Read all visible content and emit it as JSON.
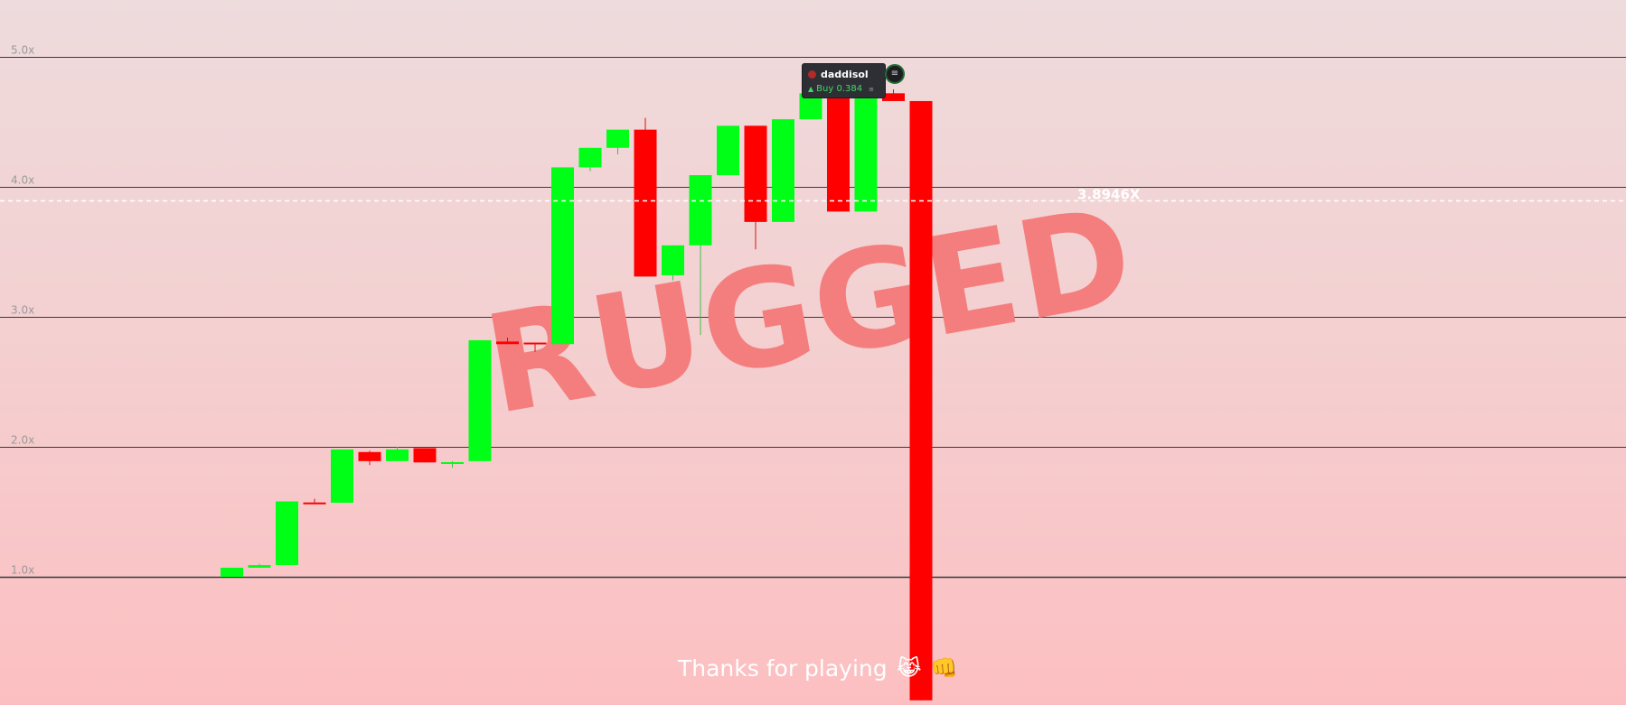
{
  "chart_data": {
    "type": "candlestick",
    "y_scale_label_suffix": "x",
    "ylim": [
      0.05,
      5.43
    ],
    "y_ticks": [
      "1.0x",
      "2.0x",
      "3.0x",
      "4.0x",
      "5.0x"
    ],
    "current_price": 3.8946,
    "current_price_label": "3.8946X",
    "watermark": "RUGGED",
    "colors": {
      "up": "#00ff16",
      "down": "#ff0000",
      "grid": "#3a3a3a",
      "current_line": "#ffffff"
    },
    "candles": [
      {
        "open": 1.0,
        "high": 1.07,
        "low": 1.0,
        "close": 1.07
      },
      {
        "open": 1.07,
        "high": 1.1,
        "low": 1.07,
        "close": 1.09
      },
      {
        "open": 1.09,
        "high": 1.58,
        "low": 1.09,
        "close": 1.58
      },
      {
        "open": 1.57,
        "high": 1.6,
        "low": 1.56,
        "close": 1.56
      },
      {
        "open": 1.57,
        "high": 1.98,
        "low": 1.57,
        "close": 1.98
      },
      {
        "open": 1.96,
        "high": 1.97,
        "low": 1.86,
        "close": 1.89
      },
      {
        "open": 1.89,
        "high": 2.0,
        "low": 1.89,
        "close": 1.98
      },
      {
        "open": 1.99,
        "high": 1.99,
        "low": 1.88,
        "close": 1.88
      },
      {
        "open": 1.87,
        "high": 1.89,
        "low": 1.84,
        "close": 1.88
      },
      {
        "open": 1.89,
        "high": 2.82,
        "low": 1.89,
        "close": 2.82
      },
      {
        "open": 2.81,
        "high": 2.84,
        "low": 2.79,
        "close": 2.79
      },
      {
        "open": 2.8,
        "high": 2.8,
        "low": 2.73,
        "close": 2.79
      },
      {
        "open": 2.79,
        "high": 4.15,
        "low": 2.79,
        "close": 4.15
      },
      {
        "open": 4.15,
        "high": 4.3,
        "low": 4.12,
        "close": 4.3
      },
      {
        "open": 4.3,
        "high": 4.44,
        "low": 4.25,
        "close": 4.44
      },
      {
        "open": 4.44,
        "high": 4.53,
        "low": 3.31,
        "close": 3.31
      },
      {
        "open": 3.32,
        "high": 3.55,
        "low": 3.28,
        "close": 3.55
      },
      {
        "open": 3.55,
        "high": 4.09,
        "low": 2.86,
        "close": 4.09
      },
      {
        "open": 4.09,
        "high": 4.47,
        "low": 4.09,
        "close": 4.47
      },
      {
        "open": 4.47,
        "high": 4.47,
        "low": 3.52,
        "close": 3.73
      },
      {
        "open": 3.73,
        "high": 4.52,
        "low": 3.73,
        "close": 4.52
      },
      {
        "open": 4.52,
        "high": 4.72,
        "low": 4.52,
        "close": 4.72
      },
      {
        "open": 4.72,
        "high": 4.72,
        "low": 3.81,
        "close": 3.81
      },
      {
        "open": 3.81,
        "high": 4.72,
        "low": 3.81,
        "close": 4.72
      },
      {
        "open": 4.72,
        "high": 4.75,
        "low": 4.66,
        "close": 4.66
      },
      {
        "open": 4.66,
        "high": 4.66,
        "low": 0.05,
        "close": 0.05
      }
    ]
  },
  "trade_tag": {
    "user": "daddisol",
    "action": "Buy 0.384",
    "arrow": "▲",
    "mini_icon": "≡",
    "icon_name": "list-icon"
  },
  "footer": {
    "message": "Thanks for playing",
    "emojis": [
      "😹",
      "👊"
    ]
  }
}
